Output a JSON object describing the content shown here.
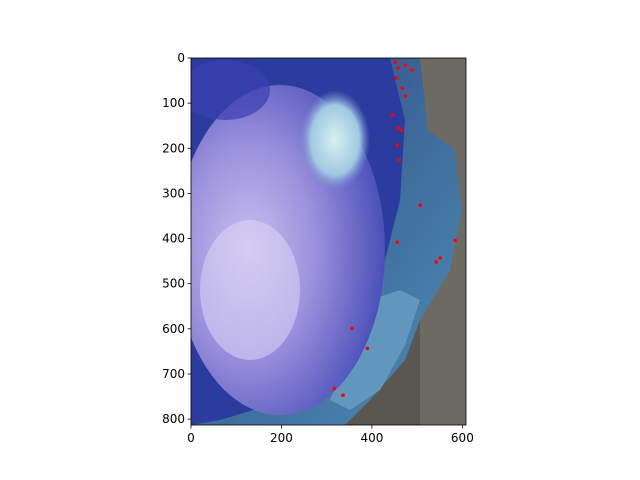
{
  "chart_data": {
    "type": "scatter",
    "x": [
      452,
      458,
      474,
      489,
      454,
      467,
      474,
      445,
      458,
      465,
      456,
      460,
      507,
      456,
      584,
      551,
      542,
      356,
      390,
      317,
      336
    ],
    "y": [
      9,
      22,
      16,
      27,
      44,
      67,
      84,
      126,
      155,
      160,
      193,
      226,
      326,
      408,
      404,
      443,
      452,
      599,
      643,
      732,
      747
    ],
    "color": "red",
    "xlim": [
      0,
      608
    ],
    "ylim": [
      813,
      0
    ],
    "xticks": [
      0,
      200,
      400,
      600
    ],
    "yticks": [
      0,
      100,
      200,
      300,
      400,
      500,
      600,
      700,
      800
    ]
  }
}
